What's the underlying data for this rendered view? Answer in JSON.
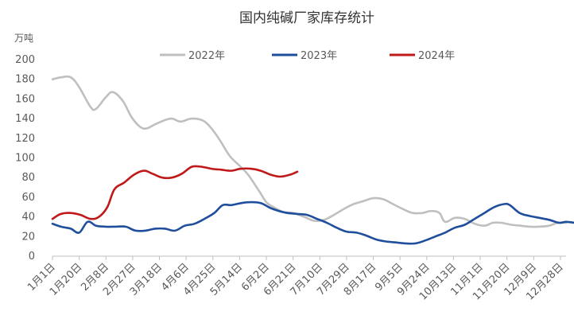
{
  "chart_data": {
    "type": "line",
    "title": "国内纯碱厂家库存统计",
    "ylabel": "万吨",
    "ylim": [
      0,
      200
    ],
    "yticks": [
      0,
      20,
      40,
      60,
      80,
      100,
      120,
      140,
      160,
      180,
      200
    ],
    "xticks": [
      "1月1日",
      "1月20日",
      "2月8日",
      "2月27日",
      "3月18日",
      "4月6日",
      "4月25日",
      "5月14日",
      "6月2日",
      "6月21日",
      "7月10日",
      "7月29日",
      "8月17日",
      "9月5日",
      "9月24日",
      "10月13日",
      "11月1日",
      "11月20日",
      "12月9日",
      "12月28日"
    ],
    "x_day_range": [
      1,
      366
    ],
    "grid": false,
    "legend_position": "top",
    "series": [
      {
        "name": "2022年",
        "color": "#bfbfbf",
        "points": [
          [
            1,
            180
          ],
          [
            7,
            182
          ],
          [
            14,
            182
          ],
          [
            20,
            172
          ],
          [
            28,
            152
          ],
          [
            32,
            150
          ],
          [
            39,
            162
          ],
          [
            44,
            167
          ],
          [
            51,
            158
          ],
          [
            57,
            142
          ],
          [
            63,
            132
          ],
          [
            68,
            130
          ],
          [
            75,
            135
          ],
          [
            85,
            140
          ],
          [
            92,
            137
          ],
          [
            100,
            140
          ],
          [
            108,
            138
          ],
          [
            114,
            130
          ],
          [
            120,
            118
          ],
          [
            127,
            102
          ],
          [
            134,
            92
          ],
          [
            140,
            83
          ],
          [
            148,
            66
          ],
          [
            153,
            55
          ],
          [
            158,
            50
          ],
          [
            165,
            45
          ],
          [
            172,
            44
          ],
          [
            180,
            40
          ],
          [
            187,
            36
          ],
          [
            194,
            37
          ],
          [
            201,
            42
          ],
          [
            208,
            48
          ],
          [
            215,
            53
          ],
          [
            222,
            56
          ],
          [
            229,
            59
          ],
          [
            236,
            58
          ],
          [
            243,
            53
          ],
          [
            250,
            48
          ],
          [
            257,
            44
          ],
          [
            264,
            44
          ],
          [
            270,
            46
          ],
          [
            276,
            44
          ],
          [
            280,
            35
          ],
          [
            287,
            39
          ],
          [
            294,
            38
          ],
          [
            301,
            33
          ],
          [
            308,
            31
          ],
          [
            314,
            34
          ],
          [
            320,
            34
          ],
          [
            327,
            32
          ],
          [
            334,
            31
          ],
          [
            340,
            30
          ],
          [
            347,
            30
          ],
          [
            354,
            31
          ],
          [
            360,
            34
          ],
          [
            366,
            34
          ]
        ]
      },
      {
        "name": "2023年",
        "color": "#1f4e9c",
        "points": [
          [
            1,
            33
          ],
          [
            7,
            30
          ],
          [
            14,
            28
          ],
          [
            20,
            24
          ],
          [
            26,
            35
          ],
          [
            32,
            31
          ],
          [
            39,
            30
          ],
          [
            46,
            30
          ],
          [
            53,
            30
          ],
          [
            60,
            26
          ],
          [
            67,
            26
          ],
          [
            74,
            28
          ],
          [
            81,
            28
          ],
          [
            88,
            26
          ],
          [
            95,
            31
          ],
          [
            102,
            33
          ],
          [
            109,
            38
          ],
          [
            116,
            44
          ],
          [
            122,
            52
          ],
          [
            128,
            52
          ],
          [
            135,
            54
          ],
          [
            142,
            55
          ],
          [
            149,
            54
          ],
          [
            156,
            49
          ],
          [
            162,
            46
          ],
          [
            168,
            44
          ],
          [
            175,
            43
          ],
          [
            182,
            42
          ],
          [
            189,
            38
          ],
          [
            196,
            34
          ],
          [
            203,
            29
          ],
          [
            210,
            25
          ],
          [
            217,
            24
          ],
          [
            224,
            21
          ],
          [
            231,
            17
          ],
          [
            238,
            15
          ],
          [
            245,
            14
          ],
          [
            252,
            13
          ],
          [
            259,
            13
          ],
          [
            266,
            16
          ],
          [
            273,
            20
          ],
          [
            280,
            24
          ],
          [
            287,
            29
          ],
          [
            294,
            32
          ],
          [
            301,
            38
          ],
          [
            308,
            44
          ],
          [
            315,
            50
          ],
          [
            322,
            53
          ],
          [
            326,
            52
          ],
          [
            333,
            44
          ],
          [
            340,
            41
          ],
          [
            347,
            39
          ],
          [
            354,
            37
          ],
          [
            361,
            34
          ],
          [
            366,
            35
          ],
          [
            372,
            34
          ]
        ]
      },
      {
        "name": "2024年",
        "color": "#c0191a",
        "points": [
          [
            1,
            38
          ],
          [
            7,
            43
          ],
          [
            14,
            44
          ],
          [
            21,
            42
          ],
          [
            28,
            38
          ],
          [
            34,
            40
          ],
          [
            40,
            50
          ],
          [
            45,
            68
          ],
          [
            52,
            75
          ],
          [
            59,
            83
          ],
          [
            66,
            87
          ],
          [
            72,
            84
          ],
          [
            79,
            80
          ],
          [
            86,
            80
          ],
          [
            93,
            84
          ],
          [
            100,
            91
          ],
          [
            107,
            91
          ],
          [
            114,
            89
          ],
          [
            121,
            88
          ],
          [
            128,
            87
          ],
          [
            135,
            89
          ],
          [
            142,
            89
          ],
          [
            149,
            87
          ],
          [
            156,
            83
          ],
          [
            163,
            81
          ],
          [
            170,
            83
          ],
          [
            175,
            86
          ]
        ]
      }
    ]
  }
}
